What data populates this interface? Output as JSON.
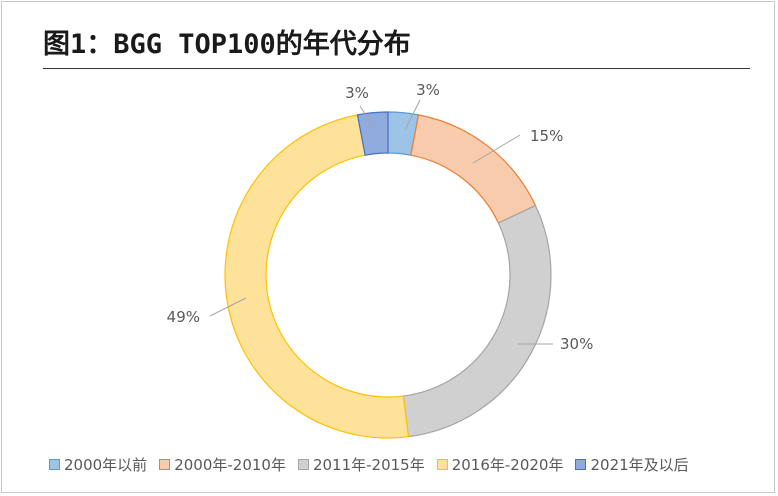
{
  "title": "图1：BGG TOP100的年代分布",
  "chart_data": {
    "type": "pie",
    "style": "donut",
    "categories": [
      "2000年以前",
      "2000年-2010年",
      "2011年-2015年",
      "2016年-2020年",
      "2021年及以后"
    ],
    "values": [
      3,
      15,
      30,
      49,
      3
    ],
    "labels": [
      "3%",
      "15%",
      "30%",
      "49%",
      "3%"
    ],
    "colors": [
      {
        "fill": "#9DC3E6",
        "stroke": "#5B9BD5"
      },
      {
        "fill": "#F8CBAD",
        "stroke": "#ED7D31"
      },
      {
        "fill": "#D0D0D0",
        "stroke": "#A5A5A5"
      },
      {
        "fill": "#FFE29A",
        "stroke": "#FFC000"
      },
      {
        "fill": "#8FAADC",
        "stroke": "#4472C4"
      }
    ],
    "legend_position": "bottom"
  }
}
